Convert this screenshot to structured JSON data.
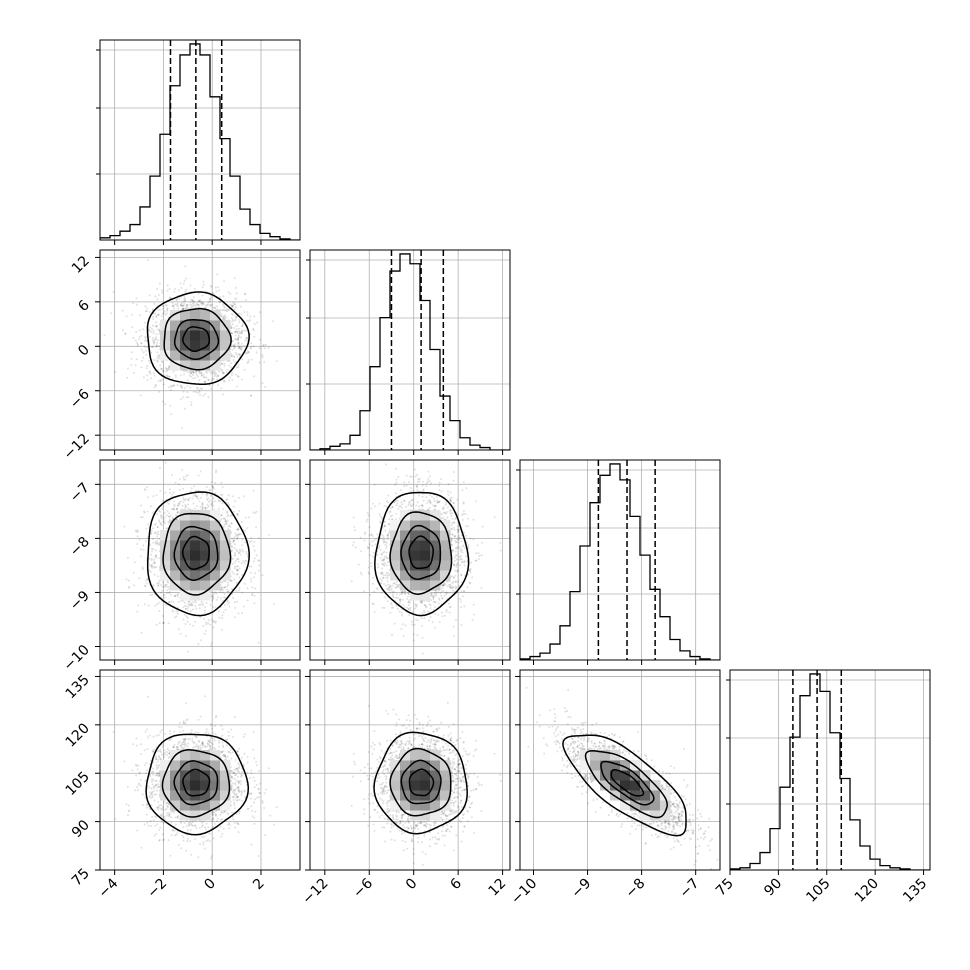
{
  "chart_data": {
    "type": "corner",
    "parameters": [
      {
        "ticks": [
          -4,
          -2,
          0,
          2
        ],
        "tick_labels": [
          "−4",
          "−2",
          "0",
          "2"
        ],
        "range": [
          -4.6,
          3.6
        ],
        "mean": -0.66,
        "std": 1.0,
        "quantiles": [
          -1.71,
          -0.67,
          0.39
        ]
      },
      {
        "ticks": [
          -12,
          -6,
          0,
          6,
          12
        ],
        "tick_labels": [
          "−12",
          "−6",
          "0",
          "6",
          "12"
        ],
        "range": [
          -14.0,
          13.0
        ],
        "mean": 1.0,
        "std": 3.0,
        "quantiles": [
          -3.0,
          1.0,
          4.0
        ]
      },
      {
        "ticks": [
          -10,
          -9,
          -8,
          -7
        ],
        "tick_labels": [
          "−10",
          "−9",
          "−8",
          "−7"
        ],
        "range": [
          -10.25,
          -6.55
        ],
        "mean": -8.27,
        "std": 0.55,
        "quantiles": [
          -8.8,
          -8.27,
          -7.75
        ]
      },
      {
        "ticks": [
          75,
          90,
          105,
          120,
          135
        ],
        "tick_labels": [
          "75",
          "90",
          "105",
          "120",
          "135"
        ],
        "range": [
          75,
          137
        ],
        "mean": 102.0,
        "std": 7.5,
        "quantiles": [
          94.5,
          102.0,
          109.5
        ]
      }
    ],
    "correlations": [
      [
        1,
        0,
        0,
        0
      ],
      [
        0,
        1,
        0,
        0
      ],
      [
        0,
        0,
        1,
        -0.75
      ],
      [
        0,
        0,
        -0.75,
        1
      ]
    ],
    "histograms": [
      {
        "edges": [
          -4.6,
          3.6
        ],
        "counts": [
          2,
          4,
          8,
          14,
          30,
          58,
          96,
          140,
          168,
          178,
          168,
          130,
          92,
          58,
          28,
          14,
          6,
          3,
          1,
          0
        ]
      },
      {
        "edges": [
          -14.0,
          13.0
        ],
        "counts": [
          0,
          1,
          3,
          5,
          12,
          32,
          68,
          108,
          146,
          160,
          152,
          122,
          82,
          44,
          24,
          10,
          4,
          2,
          0,
          0
        ]
      },
      {
        "edges": [
          -10.25,
          -6.55
        ],
        "counts": [
          1,
          3,
          6,
          14,
          30,
          60,
          100,
          138,
          162,
          172,
          158,
          126,
          92,
          62,
          38,
          18,
          8,
          3,
          1,
          0
        ]
      },
      {
        "edges": [
          75,
          137
        ],
        "counts": [
          1,
          2,
          6,
          16,
          38,
          76,
          122,
          160,
          180,
          164,
          126,
          84,
          46,
          22,
          10,
          4,
          2,
          1,
          0,
          0
        ]
      }
    ],
    "contour_levels_sigma": [
      0.5,
      1.0,
      1.5,
      2.0
    ],
    "grid": true,
    "quantile_lines": "dashed"
  }
}
